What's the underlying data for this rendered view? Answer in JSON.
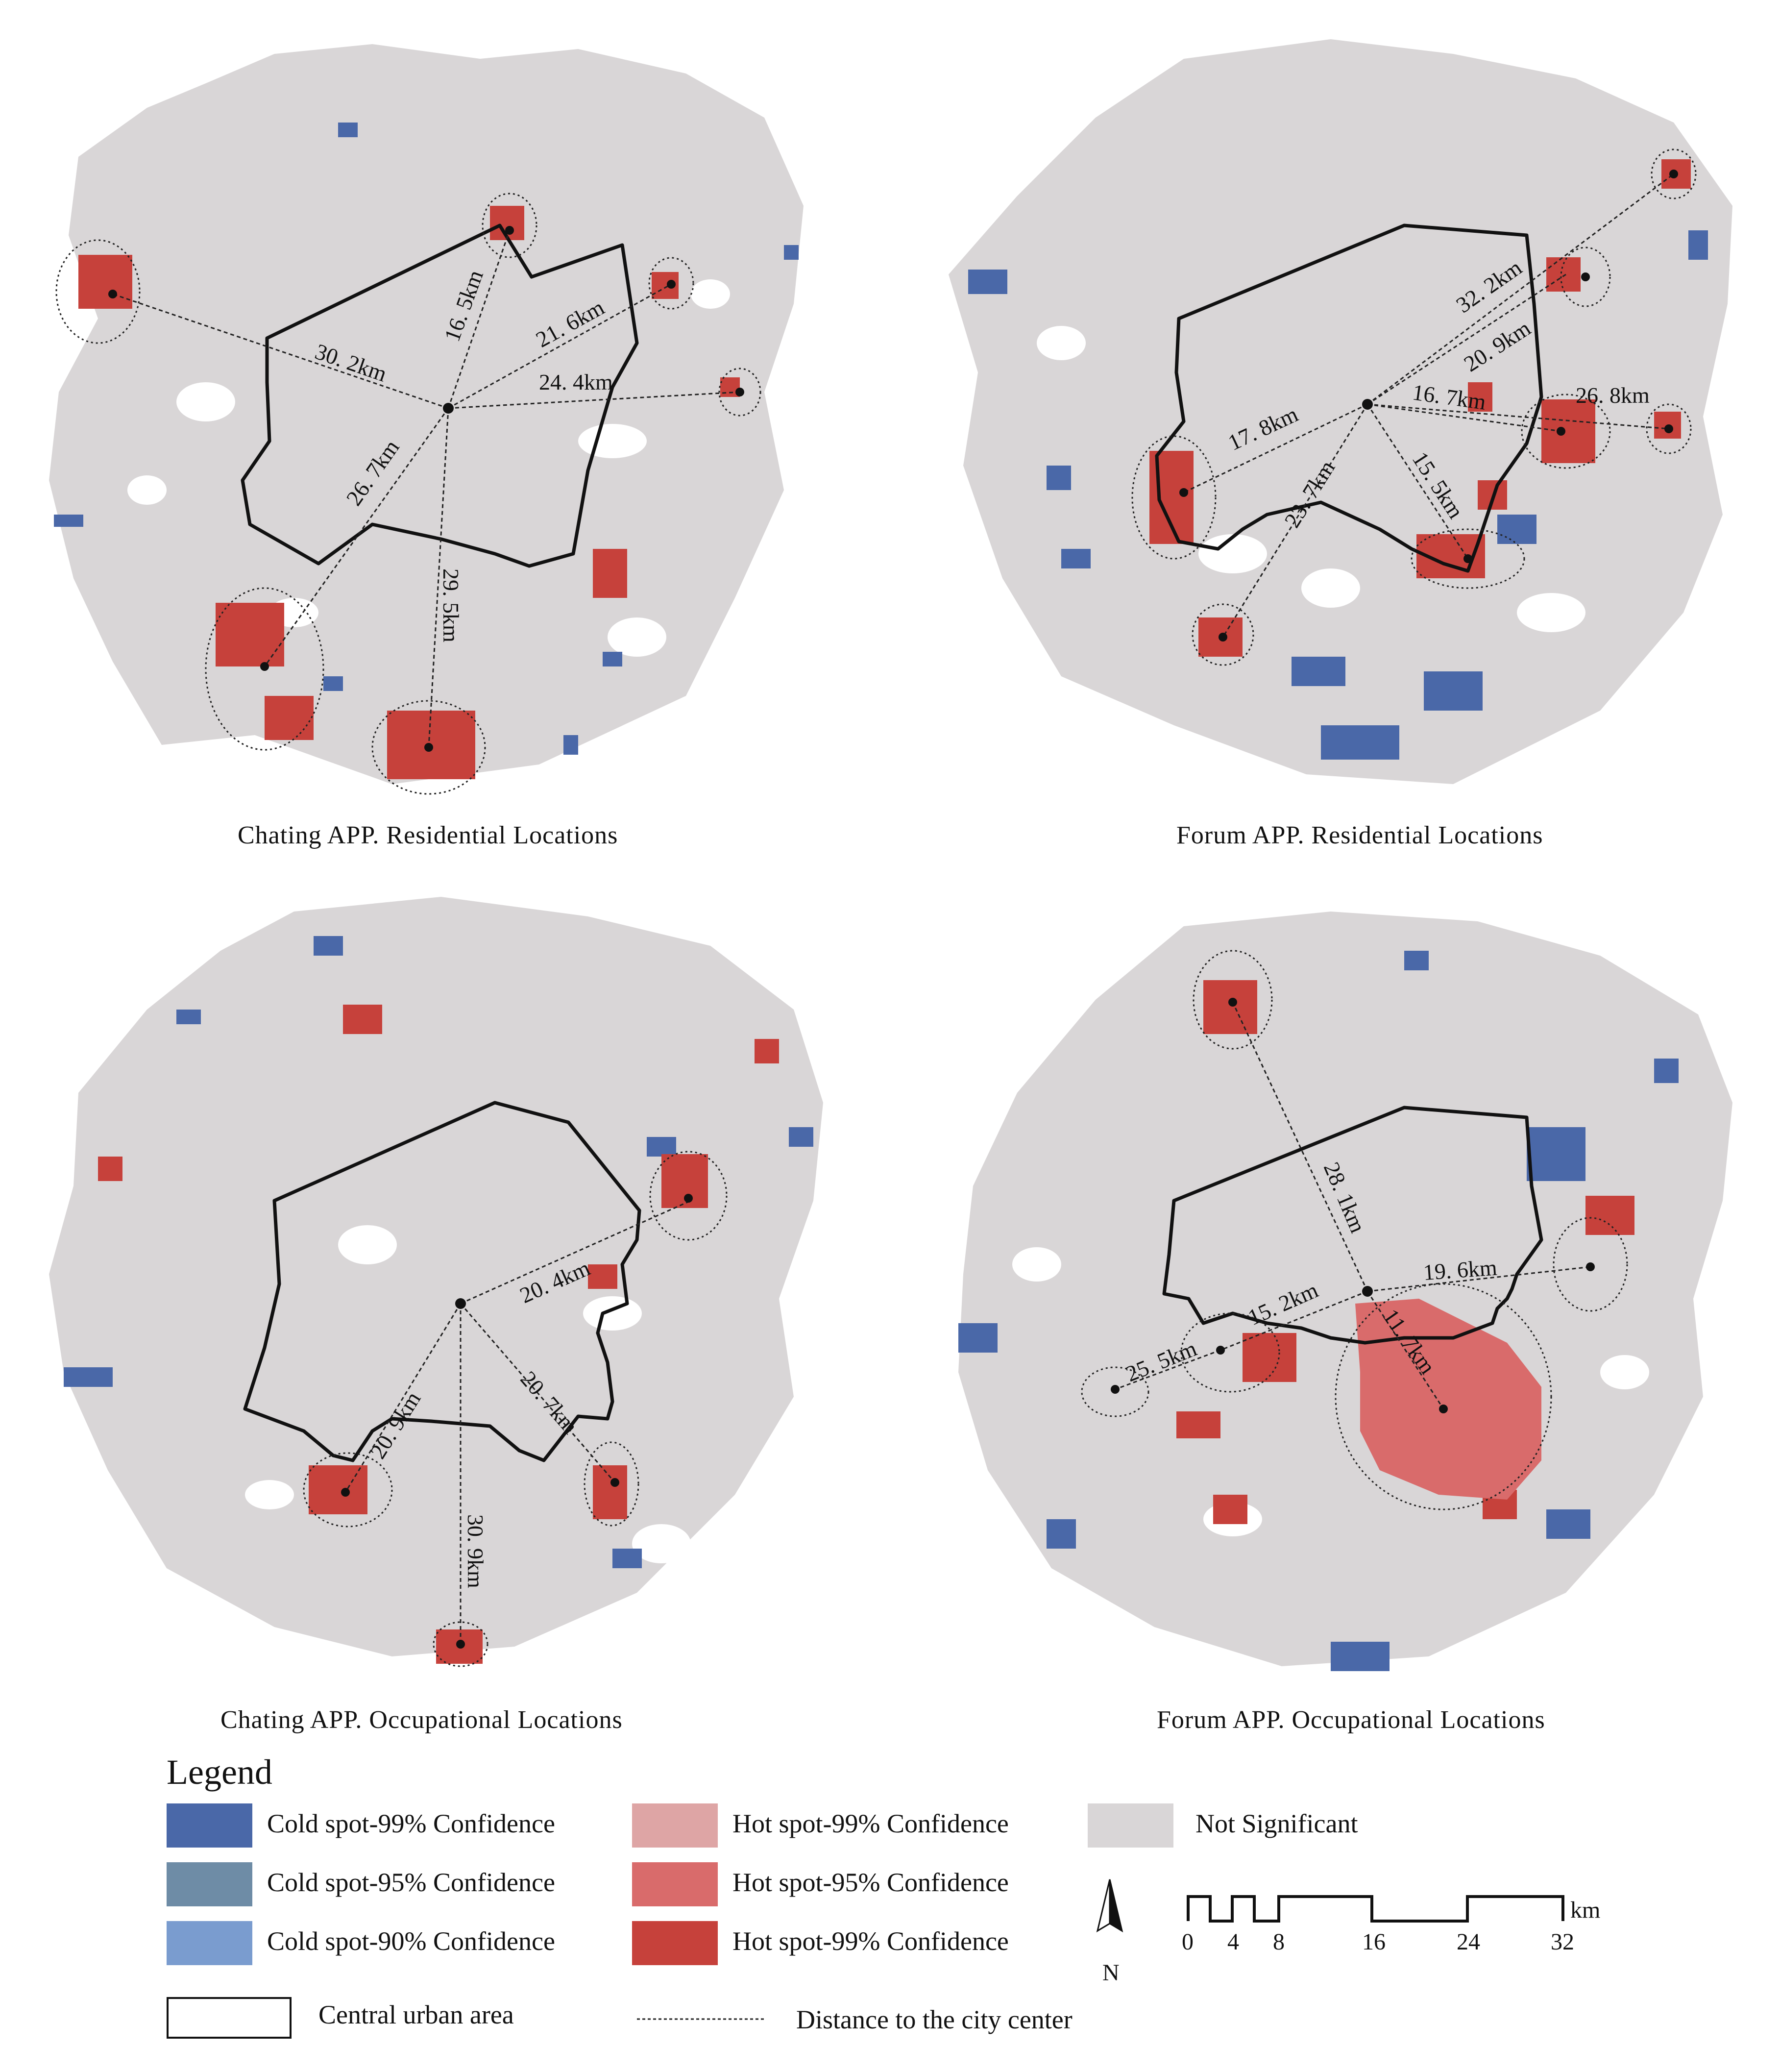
{
  "colors": {
    "not_significant": "#d9d6d7",
    "cold99": "#4a68a8",
    "cold95": "#6e8ca6",
    "cold90": "#7a9ccf",
    "hot99_light": "#dea5a5",
    "hot95": "#d96b6b",
    "hot99": "#c6413b",
    "boundary": "#111111"
  },
  "panels": [
    {
      "caption": "Chating APP. Residential Locations",
      "distances": [
        "30. 2km",
        "16. 5km",
        "21. 6km",
        "24. 4km",
        "26. 7km",
        "29. 5km"
      ]
    },
    {
      "caption": "Forum APP. Residential Locations",
      "distances": [
        "32. 2km",
        "20. 9km",
        "26. 8km",
        "16. 7km",
        "17. 8km",
        "23. 7km",
        "15. 5km"
      ]
    },
    {
      "caption": "Chating APP. Occupational Locations",
      "distances": [
        "20. 4km",
        "20. 9km",
        "20. 7km",
        "30. 9km"
      ]
    },
    {
      "caption": "Forum APP. Occupational Locations",
      "distances": [
        "28. 1km",
        "19. 6km",
        "15. 2km",
        "11. 7km",
        "25. 5km"
      ]
    }
  ],
  "legend": {
    "title": "Legend",
    "items": [
      {
        "label": "Cold spot-99% Confidence",
        "color_key": "cold99"
      },
      {
        "label": "Cold spot-95% Confidence",
        "color_key": "cold95"
      },
      {
        "label": "Cold spot-90% Confidence",
        "color_key": "cold90"
      },
      {
        "label": "Hot spot-99% Confidence",
        "color_key": "hot99_light"
      },
      {
        "label": "Hot spot-95% Confidence",
        "color_key": "hot95"
      },
      {
        "label": "Hot spot-99% Confidence",
        "color_key": "hot99"
      },
      {
        "label": "Not Significant",
        "color_key": "not_significant"
      }
    ],
    "central_urban_area": "Central urban area",
    "distance_line": "Distance to the city center",
    "north": "N",
    "scale_ticks": [
      "0",
      "4",
      "8",
      "16",
      "24",
      "32"
    ],
    "scale_unit": "km"
  }
}
